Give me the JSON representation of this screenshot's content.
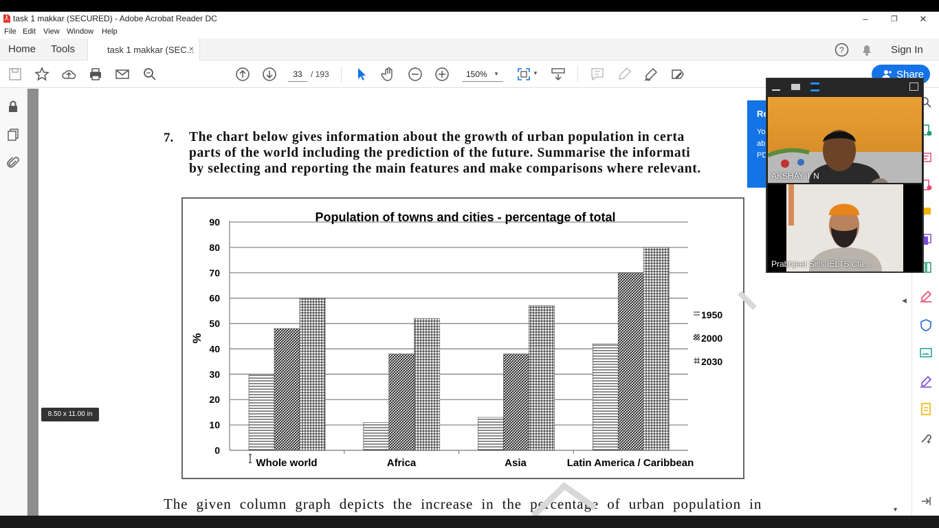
{
  "window": {
    "title": "task 1 makkar (SECURED) - Adobe Acrobat Reader DC",
    "controls": {
      "minimize": "–",
      "restore": "❐",
      "close": "✕"
    }
  },
  "menu": [
    "File",
    "Edit",
    "View",
    "Window",
    "Help"
  ],
  "tabs": {
    "home": "Home",
    "tools": "Tools",
    "document": "task 1 makkar (SEC...",
    "close": "×"
  },
  "header": {
    "sign_in": "Sign In",
    "share": "Share"
  },
  "toolbar": {
    "page_current": "33",
    "page_total": "/ 193",
    "zoom": "150%",
    "icons": [
      "save-icon",
      "star-icon",
      "upload-icon",
      "print-icon",
      "mail-icon",
      "search-icon",
      "prev-page-icon",
      "next-page-icon",
      "select-icon",
      "hand-icon",
      "zoom-out-icon",
      "zoom-in-icon",
      "fit-icon",
      "scroll-icon",
      "comment-icon",
      "highlight-icon",
      "sign-icon",
      "edit-icon"
    ]
  },
  "document": {
    "question_number": "7.",
    "question_lines": [
      "The chart below gives information about the growth of urban population in certa",
      "parts of the world including the prediction of the future. Summarise the informati",
      "by selecting and reporting the main features and make comparisons where relevant."
    ],
    "answer_line": "The given column graph depicts the increase in the percentage of urban population in",
    "page_size": "8.50 x 11.00 in"
  },
  "notification": {
    "title": "Re",
    "text": [
      "Yo",
      "ab",
      "PD"
    ]
  },
  "video_call": {
    "participants": [
      "AKSHAY T N",
      "Prabhjeet Sir's IELTS Cla..."
    ]
  },
  "chart_data": {
    "type": "bar",
    "title": "Population of towns and cities - percentage of total",
    "ylabel": "%",
    "xlabel": "",
    "ylim": [
      0,
      90
    ],
    "yticks": [
      0,
      10,
      20,
      30,
      40,
      50,
      60,
      70,
      80,
      90
    ],
    "categories": [
      "Whole world",
      "Africa",
      "Asia",
      "Latin America / Caribbean"
    ],
    "series": [
      {
        "name": "1950",
        "values": [
          30,
          11,
          13,
          42
        ]
      },
      {
        "name": "2000",
        "values": [
          48,
          38,
          38,
          70
        ]
      },
      {
        "name": "2030",
        "values": [
          60,
          52,
          57,
          80
        ]
      }
    ],
    "legend": "right",
    "grid": true
  }
}
